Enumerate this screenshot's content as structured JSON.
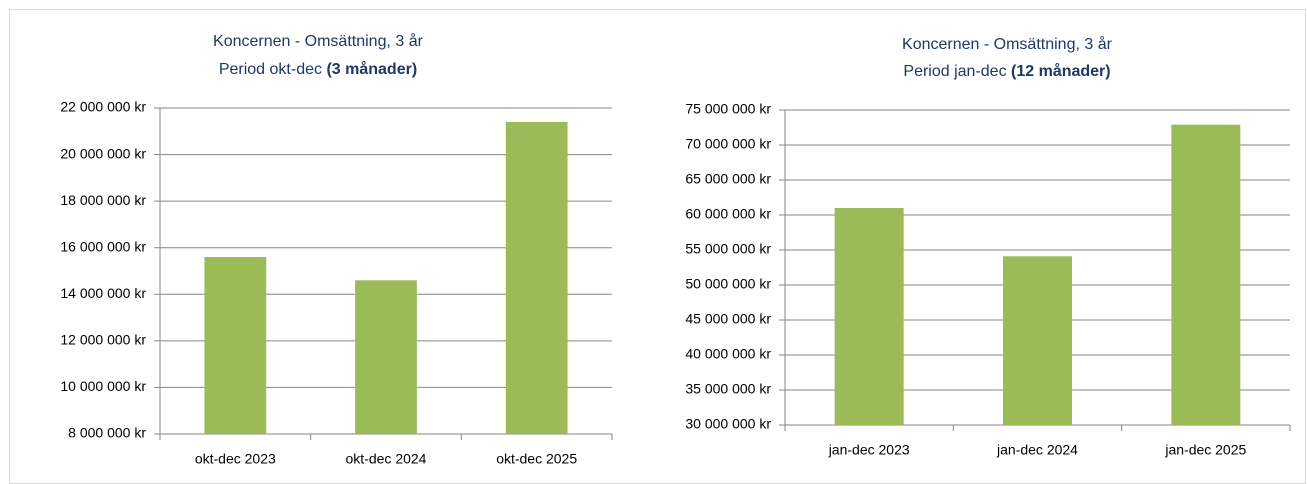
{
  "chart_data": [
    {
      "type": "bar",
      "title": "Koncernen - Omsättning, 3 år",
      "subtitle": "Period okt-dec",
      "subtitle_bold": "(3 månader)",
      "categories": [
        "okt-dec 2023",
        "okt-dec 2024",
        "okt-dec 2025"
      ],
      "values": [
        15600000,
        14600000,
        21400000
      ],
      "color": "#9bbb59",
      "ylim": [
        8000000,
        22000000
      ],
      "yticks": [
        {
          "value": 8000000,
          "label": "8 000 000 kr"
        },
        {
          "value": 10000000,
          "label": "10 000 000 kr"
        },
        {
          "value": 12000000,
          "label": "12 000 000 kr"
        },
        {
          "value": 14000000,
          "label": "14 000 000 kr"
        },
        {
          "value": 16000000,
          "label": "16 000 000 kr"
        },
        {
          "value": 18000000,
          "label": "18 000 000 kr"
        },
        {
          "value": 20000000,
          "label": "20 000 000 kr"
        },
        {
          "value": 22000000,
          "label": "22 000 000 kr"
        }
      ],
      "grid": true
    },
    {
      "type": "bar",
      "title": "Koncernen - Omsättning, 3 år",
      "subtitle": "Period jan-dec",
      "subtitle_bold": "(12 månader)",
      "categories": [
        "jan-dec 2023",
        "jan-dec 2024",
        "jan-dec 2025"
      ],
      "values": [
        61000000,
        54100000,
        72900000
      ],
      "color": "#9bbb59",
      "ylim": [
        30000000,
        75000000
      ],
      "yticks": [
        {
          "value": 30000000,
          "label": "30 000 000 kr"
        },
        {
          "value": 35000000,
          "label": "35 000 000 kr"
        },
        {
          "value": 40000000,
          "label": "40 000 000 kr"
        },
        {
          "value": 45000000,
          "label": "45 000 000 kr"
        },
        {
          "value": 50000000,
          "label": "50 000 000 kr"
        },
        {
          "value": 55000000,
          "label": "55 000 000 kr"
        },
        {
          "value": 60000000,
          "label": "60 000 000 kr"
        },
        {
          "value": 65000000,
          "label": "65 000 000 kr"
        },
        {
          "value": 70000000,
          "label": "70 000 000 kr"
        },
        {
          "value": 75000000,
          "label": "75 000 000 kr"
        }
      ],
      "grid": true
    }
  ]
}
